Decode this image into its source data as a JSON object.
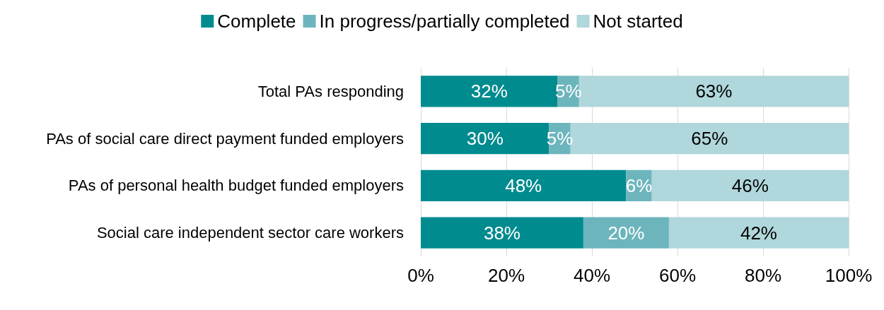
{
  "chart_data": {
    "type": "bar",
    "orientation": "horizontal",
    "stacked": true,
    "categories": [
      "Total PAs responding",
      "PAs of social care direct payment funded employers",
      "PAs of personal health budget funded employers",
      "Social care independent sector care workers"
    ],
    "series": [
      {
        "name": "Complete",
        "color": "#008b8f",
        "values": [
          32,
          30,
          48,
          38
        ],
        "value_labels": [
          "32%",
          "30%",
          "48%",
          "38%"
        ]
      },
      {
        "name": "In progress/partially completed",
        "color": "#6db5bd",
        "values": [
          5,
          5,
          6,
          20
        ],
        "value_labels": [
          "5%",
          "5%",
          "6%",
          "20%"
        ]
      },
      {
        "name": "Not started",
        "color": "#b0d7db",
        "values": [
          63,
          65,
          46,
          42
        ],
        "value_labels": [
          "63%",
          "65%",
          "46%",
          "42%"
        ]
      }
    ],
    "xlim": [
      0,
      100
    ],
    "xticks": [
      {
        "value": 0,
        "label": "0%"
      },
      {
        "value": 20,
        "label": "20%"
      },
      {
        "value": 40,
        "label": "40%"
      },
      {
        "value": 60,
        "label": "60%"
      },
      {
        "value": 80,
        "label": "80%"
      },
      {
        "value": 100,
        "label": "100%"
      }
    ],
    "grid": "x",
    "legend": "top"
  }
}
